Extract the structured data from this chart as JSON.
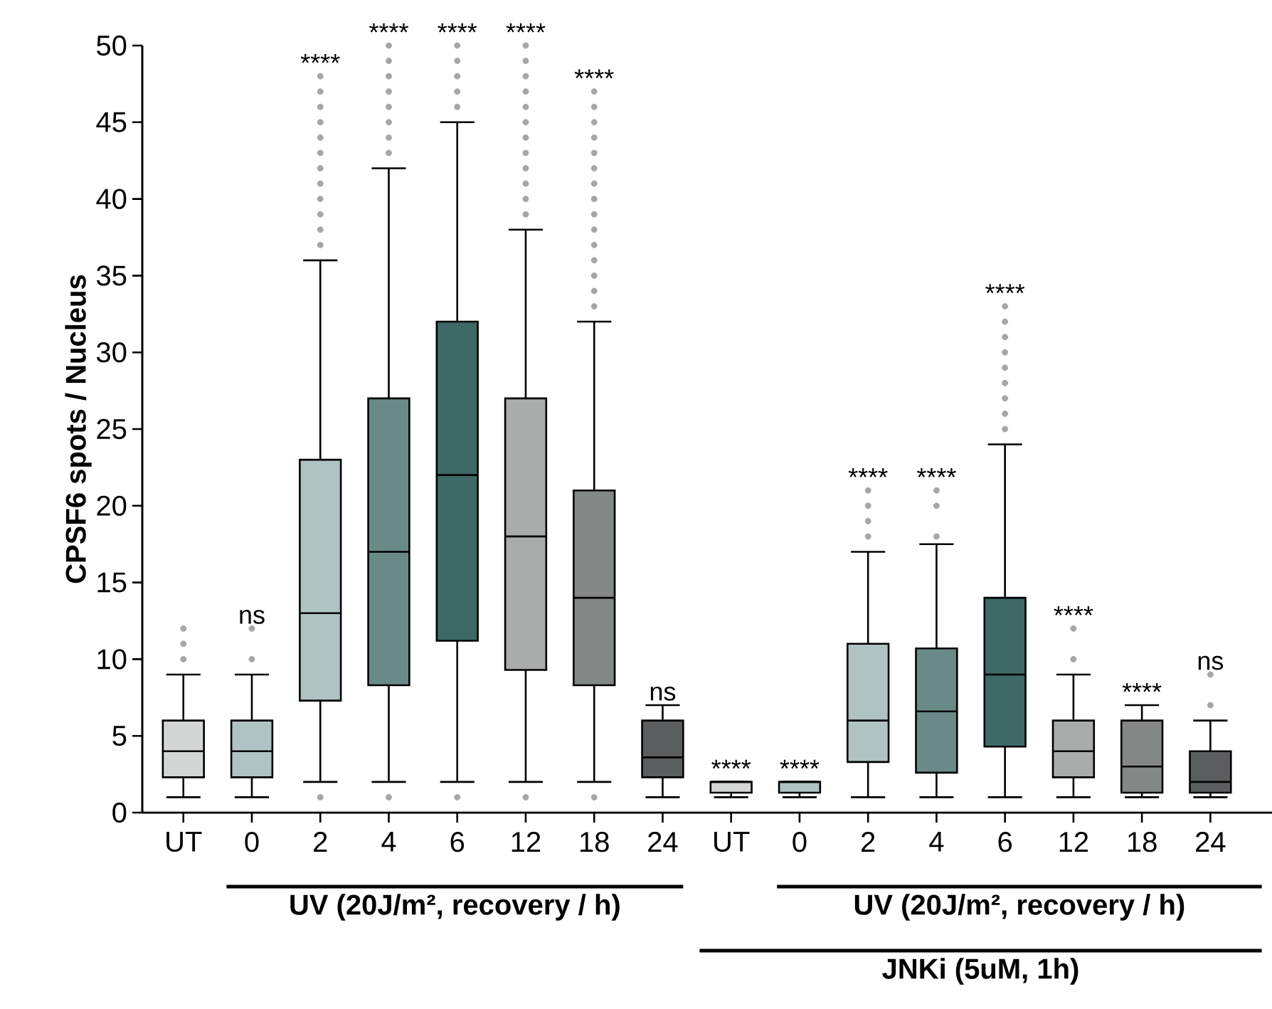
{
  "chart_data": {
    "type": "box",
    "ylabel": "CPSF6 spots / Nucleus",
    "categories": [
      "UT",
      "0",
      "2",
      "4",
      "6",
      "12",
      "18",
      "24",
      "UT",
      "0",
      "2",
      "4",
      "6",
      "12",
      "18",
      "24"
    ],
    "colors": [
      "#d3d6d5",
      "#b0c3c3",
      "#b0c3c3",
      "#6a8a88",
      "#3e6966",
      "#aaacab",
      "#838786",
      "#5a5e5e",
      "#d3d6d5",
      "#b0c3c3",
      "#b0c3c3",
      "#6a8a88",
      "#3e6966",
      "#aaacab",
      "#838786",
      "#5a5e5e"
    ],
    "boxes": [
      {
        "low": 1,
        "q1": 2.3,
        "median": 4,
        "q3": 6,
        "high": 9,
        "outliers": [
          10,
          11,
          12
        ]
      },
      {
        "low": 1,
        "q1": 2.3,
        "median": 4,
        "q3": 6,
        "high": 9,
        "outliers": [
          10,
          12
        ]
      },
      {
        "low": 2,
        "q1": 7.3,
        "median": 13,
        "q3": 23,
        "high": 36,
        "outliers": [
          1,
          37,
          38,
          39,
          40,
          41,
          42,
          43,
          44,
          45,
          46,
          47,
          48
        ]
      },
      {
        "low": 2,
        "q1": 8.3,
        "median": 17,
        "q3": 27,
        "high": 42,
        "outliers": [
          1,
          43,
          44,
          45,
          46,
          47,
          48,
          49,
          50
        ]
      },
      {
        "low": 2,
        "q1": 11.2,
        "median": 22,
        "q3": 32,
        "high": 45,
        "outliers": [
          1,
          46,
          47,
          48,
          49,
          50
        ]
      },
      {
        "low": 2,
        "q1": 9.3,
        "median": 18,
        "q3": 27,
        "high": 38,
        "outliers": [
          1,
          39,
          40,
          41,
          42,
          43,
          44,
          45,
          46,
          47,
          48,
          49,
          50
        ]
      },
      {
        "low": 2,
        "q1": 8.3,
        "median": 14,
        "q3": 21,
        "high": 32,
        "outliers": [
          1,
          33,
          34,
          35,
          36,
          37,
          38,
          39,
          40,
          41,
          42,
          43,
          44,
          45,
          46,
          47
        ]
      },
      {
        "low": 1,
        "q1": 2.3,
        "median": 3.6,
        "q3": 6,
        "high": 7
      },
      {
        "low": 1,
        "q1": 1.3,
        "median": 2,
        "q3": 2,
        "high": 2
      },
      {
        "low": 1,
        "q1": 1.3,
        "median": 2,
        "q3": 2,
        "high": 2
      },
      {
        "low": 1,
        "q1": 3.3,
        "median": 6,
        "q3": 11,
        "high": 17,
        "outliers": [
          18,
          19,
          20,
          21
        ]
      },
      {
        "low": 1,
        "q1": 2.6,
        "median": 6.6,
        "q3": 10.7,
        "high": 17.5,
        "outliers": [
          18,
          20,
          21
        ]
      },
      {
        "low": 1,
        "q1": 4.3,
        "median": 9,
        "q3": 14,
        "high": 24,
        "outliers": [
          25,
          26,
          27,
          28,
          29,
          30,
          31,
          32,
          33
        ]
      },
      {
        "low": 1,
        "q1": 2.3,
        "median": 4,
        "q3": 6,
        "high": 9,
        "outliers": [
          10,
          12
        ]
      },
      {
        "low": 1,
        "q1": 1.3,
        "median": 3,
        "q3": 6,
        "high": 7
      },
      {
        "low": 1,
        "q1": 1.3,
        "median": 2,
        "q3": 4,
        "high": 6,
        "outliers": [
          7,
          9
        ]
      }
    ],
    "ylim": [
      0,
      50
    ],
    "yticks": [
      0,
      5,
      10,
      15,
      20,
      25,
      30,
      35,
      40,
      45,
      50
    ],
    "annotations": [
      "ns",
      "****",
      "****",
      "****",
      "****",
      "****",
      "ns",
      "****",
      "****",
      "****",
      "****",
      "****",
      "****",
      "****",
      "ns",
      "UV (20J/m², recovery / h)",
      "UV (20J/m², recovery / h)",
      "JNKi (5uM, 1h)"
    ]
  }
}
